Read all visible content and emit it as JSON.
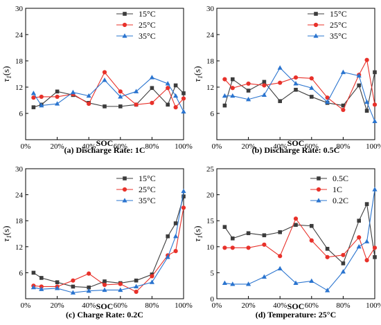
{
  "colors": {
    "s1": "#3c3c3c",
    "s2": "#e8312a",
    "s3": "#2a74cf"
  },
  "chart_data": [
    {
      "type": "line",
      "caption": "(a) Discharge Rate: 1C",
      "xlabel": "SOC",
      "ylabel_main": "τ",
      "ylabel_sub": "1",
      "ylabel_unit": "(s)",
      "x_ticks": [
        "0%",
        "20%",
        "40%",
        "60%",
        "80%",
        "100%"
      ],
      "y_ticks": [
        "6",
        "12",
        "18",
        "24",
        "30"
      ],
      "xlim": [
        0,
        100
      ],
      "ylim": [
        0,
        30
      ],
      "legend_position": "top-right",
      "x": [
        5,
        10,
        20,
        30,
        40,
        50,
        60,
        70,
        80,
        90,
        95,
        100
      ],
      "series": [
        {
          "name": "15°C",
          "marker": "square",
          "color_key": "s1",
          "values": [
            7.4,
            8.0,
            11.0,
            10.2,
            8.4,
            7.6,
            7.6,
            8.0,
            11.8,
            8.0,
            12.4,
            10.6
          ]
        },
        {
          "name": "25°C",
          "marker": "circle",
          "color_key": "s2",
          "values": [
            9.6,
            9.8,
            9.8,
            10.4,
            8.2,
            15.4,
            11.0,
            8.0,
            8.4,
            11.8,
            7.4,
            9.4
          ]
        },
        {
          "name": "35°C",
          "marker": "triangle",
          "color_key": "s3",
          "values": [
            10.6,
            7.8,
            8.2,
            10.8,
            10.0,
            13.6,
            9.8,
            11.0,
            14.2,
            12.8,
            10.0,
            6.4
          ]
        }
      ]
    },
    {
      "type": "line",
      "caption": "(b) Discharge Rate: 0.5C",
      "xlabel": "SOC",
      "ylabel_main": "τ",
      "ylabel_sub": "1",
      "ylabel_unit": "(s)",
      "x_ticks": [
        "0%",
        "20%",
        "40%",
        "60%",
        "80%",
        "100%"
      ],
      "y_ticks": [
        "6",
        "12",
        "18",
        "24",
        "30"
      ],
      "xlim": [
        0,
        100
      ],
      "ylim": [
        0,
        30
      ],
      "legend_position": "top-right",
      "x": [
        5,
        10,
        20,
        30,
        40,
        50,
        60,
        70,
        80,
        90,
        95,
        100
      ],
      "series": [
        {
          "name": "15°C",
          "marker": "square",
          "color_key": "s1",
          "values": [
            7.8,
            13.8,
            11.2,
            13.2,
            8.8,
            11.4,
            9.8,
            8.4,
            7.8,
            12.4,
            6.6,
            15.4
          ]
        },
        {
          "name": "25°C",
          "marker": "circle",
          "color_key": "s2",
          "values": [
            13.8,
            11.8,
            12.8,
            12.4,
            13.0,
            14.2,
            14.0,
            9.6,
            6.8,
            14.8,
            18.2,
            8.0
          ]
        },
        {
          "name": "35°C",
          "marker": "triangle",
          "color_key": "s3",
          "values": [
            10.0,
            10.0,
            9.2,
            10.2,
            16.4,
            12.8,
            11.8,
            8.6,
            15.4,
            14.6,
            8.6,
            4.2
          ]
        }
      ]
    },
    {
      "type": "line",
      "caption": "(c) Charge Rate: 0.2C",
      "xlabel": "SOC",
      "ylabel_main": "τ",
      "ylabel_sub": "1",
      "ylabel_unit": "(s)",
      "x_ticks": [
        "0%",
        "20%",
        "40%",
        "60%",
        "80%",
        "100%"
      ],
      "y_ticks": [
        "6",
        "12",
        "18",
        "24",
        "30"
      ],
      "xlim": [
        0,
        100
      ],
      "ylim": [
        0,
        30
      ],
      "legend_position": "top-right",
      "x": [
        5,
        10,
        20,
        30,
        40,
        50,
        60,
        70,
        80,
        90,
        95,
        100
      ],
      "series": [
        {
          "name": "15°C",
          "marker": "square",
          "color_key": "s1",
          "values": [
            6.0,
            4.8,
            3.8,
            2.8,
            2.6,
            4.0,
            3.6,
            4.2,
            5.6,
            14.4,
            17.4,
            23.6
          ]
        },
        {
          "name": "25°C",
          "marker": "circle",
          "color_key": "s2",
          "values": [
            3.0,
            2.8,
            2.8,
            4.2,
            5.8,
            3.2,
            3.4,
            1.6,
            5.2,
            10.0,
            11.0,
            21.0
          ]
        },
        {
          "name": "35°C",
          "marker": "triangle",
          "color_key": "s3",
          "values": [
            2.6,
            2.2,
            2.4,
            1.4,
            1.8,
            2.0,
            2.0,
            2.8,
            3.8,
            9.6,
            14.4,
            24.8
          ]
        }
      ]
    },
    {
      "type": "line",
      "caption": "(d) Temperature: 25°C",
      "xlabel": "SOC",
      "ylabel_main": "τ",
      "ylabel_sub": "1",
      "ylabel_unit": "(s)",
      "x_ticks": [
        "0%",
        "20%",
        "40%",
        "60%",
        "80%",
        "100%"
      ],
      "y_ticks": [
        "0",
        "5",
        "10",
        "15",
        "20",
        "25"
      ],
      "xlim": [
        0,
        100
      ],
      "ylim": [
        0,
        25
      ],
      "legend_position": "top-left",
      "x": [
        5,
        10,
        20,
        30,
        40,
        50,
        60,
        70,
        80,
        90,
        95,
        100
      ],
      "series": [
        {
          "name": "0.5C",
          "marker": "square",
          "color_key": "s1",
          "values": [
            13.8,
            11.6,
            12.6,
            12.2,
            12.8,
            14.2,
            14.0,
            9.6,
            6.8,
            15.0,
            18.2,
            8.0
          ]
        },
        {
          "name": "1C",
          "marker": "circle",
          "color_key": "s2",
          "values": [
            9.8,
            9.8,
            9.8,
            10.4,
            8.2,
            15.4,
            11.2,
            8.0,
            8.4,
            11.8,
            7.4,
            9.8
          ]
        },
        {
          "name": "0.2C",
          "marker": "triangle",
          "color_key": "s3",
          "values": [
            3.0,
            2.8,
            2.8,
            4.2,
            5.8,
            3.0,
            3.4,
            1.6,
            5.2,
            10.0,
            11.0,
            21.0
          ]
        }
      ]
    }
  ]
}
